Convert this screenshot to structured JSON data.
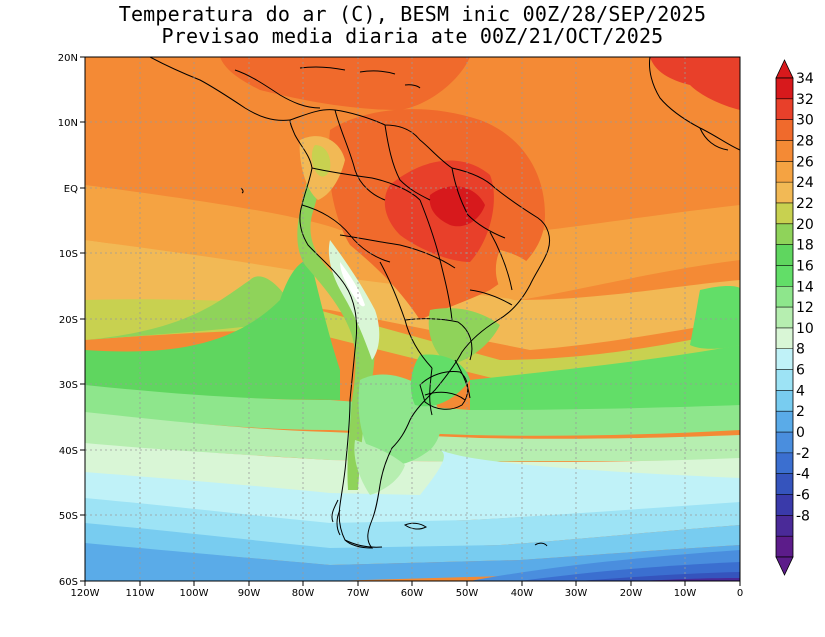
{
  "title": {
    "line1": "Temperatura do ar (C), BESM inic 00Z/28/SEP/2025",
    "line2": "Previsao media diaria ate 00Z/21/OCT/2025"
  },
  "axes": {
    "lat_labels": [
      "20N",
      "10N",
      "EQ",
      "10S",
      "20S",
      "30S",
      "40S",
      "50S",
      "60S"
    ],
    "lon_labels": [
      "120W",
      "110W",
      "100W",
      "90W",
      "80W",
      "70W",
      "60W",
      "50W",
      "40W",
      "30W",
      "20W",
      "10W",
      "0"
    ]
  },
  "colorbar": {
    "labels": [
      "34",
      "32",
      "30",
      "28",
      "26",
      "24",
      "22",
      "20",
      "18",
      "16",
      "14",
      "12",
      "10",
      "8",
      "6",
      "4",
      "2",
      "0",
      "-2",
      "-4",
      "-6",
      "-8"
    ],
    "colors": [
      "#d7191c",
      "#e8402a",
      "#f06a2c",
      "#f48a35",
      "#f5a342",
      "#f2b955",
      "#c8d150",
      "#8fd35a",
      "#5fd65f",
      "#62de68",
      "#8ee68c",
      "#b6eeb0",
      "#d9f6d6",
      "#c0f2f8",
      "#9de3f5",
      "#78ccf0",
      "#5aabe8",
      "#4a8ede",
      "#3b6fd0",
      "#3554bd",
      "#3a3aaa",
      "#4a2a98",
      "#5c1c8a"
    ]
  },
  "region": {
    "lon_min": -120,
    "lon_max": 0,
    "lat_min": -60,
    "lat_max": 20
  }
}
